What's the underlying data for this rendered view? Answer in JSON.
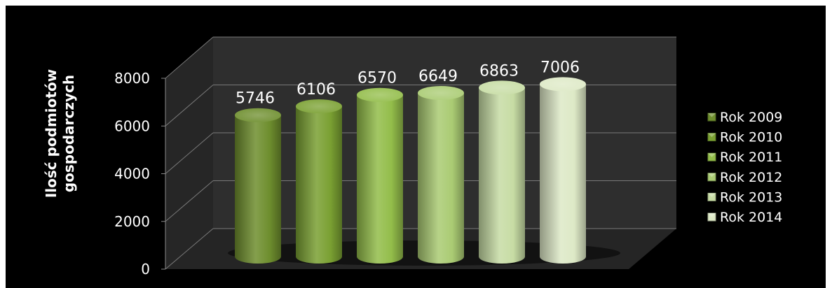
{
  "chart_data": {
    "type": "bar",
    "style": "3d-cylinder",
    "categories": [
      "Rok 2009",
      "Rok 2010",
      "Rok 2011",
      "Rok 2012",
      "Rok 2013",
      "Rok 2014"
    ],
    "values": [
      5746,
      6106,
      6570,
      6649,
      6863,
      7006
    ],
    "title": "",
    "xlabel": "",
    "ylabel_lines": [
      "Ilość podmiotów",
      "gospodarczych"
    ],
    "ylim": [
      0,
      8000
    ],
    "yticks": [
      0,
      2000,
      4000,
      6000,
      8000
    ],
    "grid": true,
    "legend_position": "right",
    "background": "#000000",
    "colors": [
      "#6e8e2e",
      "#7aa032",
      "#93bd4a",
      "#aacb73",
      "#c7dca4",
      "#dde9c6"
    ]
  }
}
